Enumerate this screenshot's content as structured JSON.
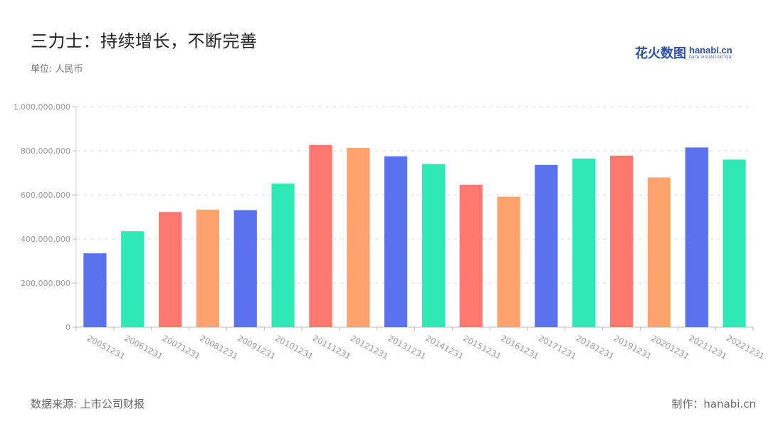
{
  "title": "三力士：持续增长，不断完善",
  "unit": "单位: 人民币",
  "source": "数据来源: 上市公司财报",
  "made_by": "制作：hanabi.cn",
  "logo": {
    "cn": "花火数图",
    "en": "hanabi.cn",
    "sub": "DATA VISUALIZATION"
  },
  "chart_data": {
    "type": "bar",
    "title": "",
    "xlabel": "",
    "ylabel": "",
    "ylim": [
      0,
      1000000000
    ],
    "y_ticks": [
      0,
      200000000,
      400000000,
      600000000,
      800000000,
      1000000000
    ],
    "y_tick_labels": [
      "0",
      "200,000,000",
      "400,000,000",
      "600,000,000",
      "800,000,000",
      "1,000,000,000"
    ],
    "grid": true,
    "categories": [
      "20051231",
      "20061231",
      "20071231",
      "20081231",
      "20091231",
      "20101231",
      "20111231",
      "20121231",
      "20131231",
      "20141231",
      "20151231",
      "20161231",
      "20171231",
      "20181231",
      "20191231",
      "20201231",
      "20211231",
      "20221231"
    ],
    "values": [
      335000000,
      435000000,
      522000000,
      533000000,
      531000000,
      651000000,
      826000000,
      813000000,
      775000000,
      740000000,
      646000000,
      592000000,
      736000000,
      765000000,
      778000000,
      679000000,
      815000000,
      760000000
    ],
    "colors": [
      "#5a72ee",
      "#2ee8b6",
      "#ff7870",
      "#ffa26d"
    ]
  }
}
